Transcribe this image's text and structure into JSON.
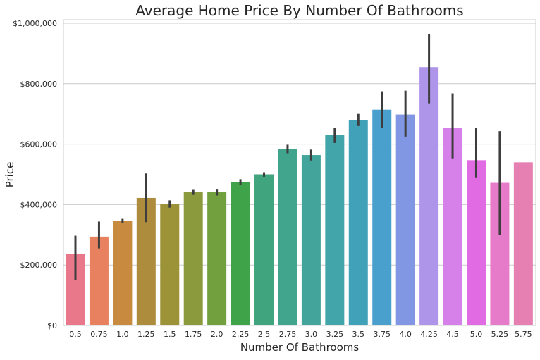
{
  "chart_data": {
    "type": "bar",
    "title": "Average Home Price By Number Of Bathrooms",
    "xlabel": "Number Of Bathrooms",
    "ylabel": "Price",
    "categories": [
      "0.5",
      "0.75",
      "1.0",
      "1.25",
      "1.5",
      "1.75",
      "2.0",
      "2.25",
      "2.5",
      "2.75",
      "3.0",
      "3.25",
      "3.5",
      "3.75",
      "4.0",
      "4.25",
      "4.5",
      "5.0",
      "5.25",
      "5.75"
    ],
    "values": [
      237000,
      294000,
      347000,
      422000,
      403000,
      442000,
      441000,
      474000,
      500000,
      584000,
      564000,
      630000,
      679000,
      714000,
      698000,
      855000,
      655000,
      547000,
      472000,
      540000
    ],
    "error_low": [
      150000,
      255000,
      340000,
      342000,
      390000,
      432000,
      430000,
      465000,
      492000,
      570000,
      546000,
      604000,
      660000,
      653000,
      625000,
      735000,
      553000,
      490000,
      300000,
      540000
    ],
    "error_high": [
      297000,
      344000,
      353000,
      503000,
      414000,
      451000,
      452000,
      484000,
      507000,
      598000,
      582000,
      655000,
      700000,
      775000,
      777000,
      965000,
      768000,
      655000,
      643000,
      540000
    ],
    "ylim": [
      0,
      1000000
    ],
    "yticks": [
      0,
      200000,
      400000,
      600000,
      800000,
      1000000
    ],
    "ytick_labels": [
      "$0",
      "$200,000",
      "$400,000",
      "$600,000",
      "$800,000",
      "$1,000,000"
    ],
    "grid": "horizontal",
    "colors": [
      "#e8788a",
      "#e8815f",
      "#c78a3e",
      "#ad8c3e",
      "#9c9339",
      "#8a9a3c",
      "#72a03f",
      "#3fa34a",
      "#40a57e",
      "#41a48c",
      "#42a49b",
      "#41a5a9",
      "#41a1b9",
      "#4aa0cd",
      "#8297e4",
      "#ae95e9",
      "#d581e9",
      "#e06be2",
      "#e57bc9",
      "#e680b2"
    ],
    "error_color": "#3d3d3d"
  }
}
